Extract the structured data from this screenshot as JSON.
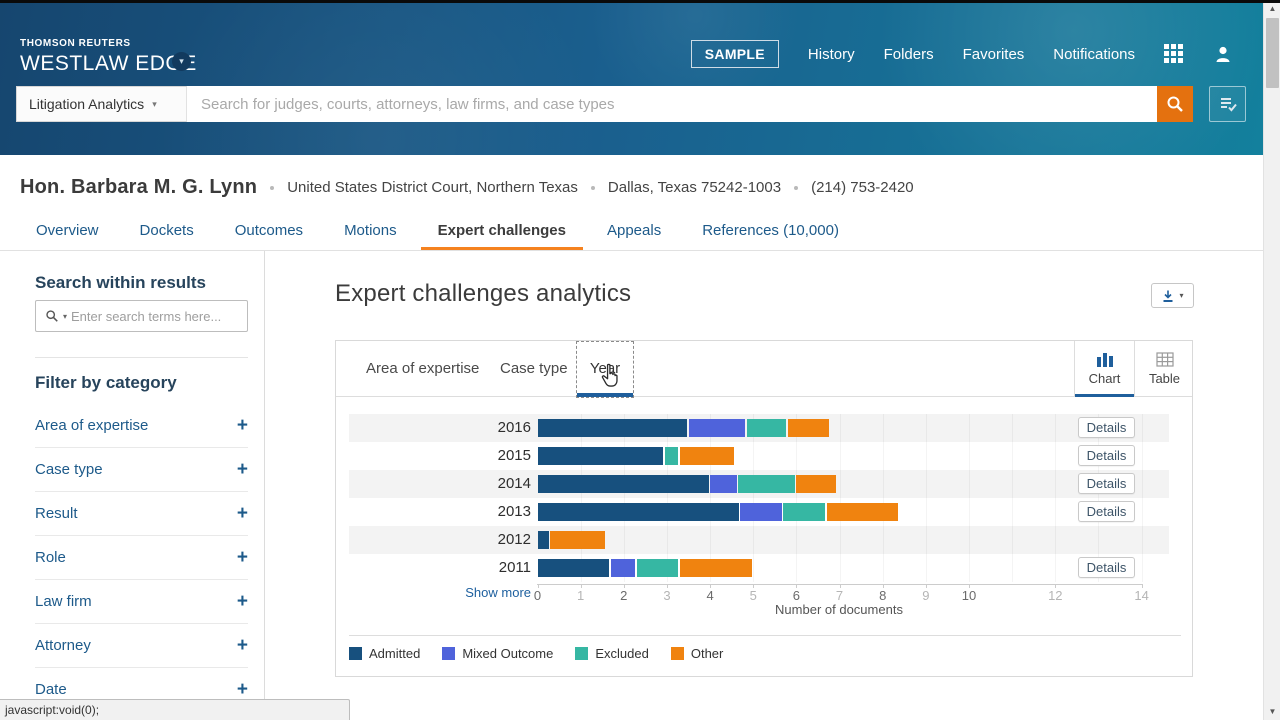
{
  "header": {
    "brand_small": "THOMSON REUTERS",
    "brand_large": "WESTLAW EDGE",
    "nav": [
      "SAMPLE",
      "History",
      "Folders",
      "Favorites",
      "Notifications"
    ],
    "search": {
      "scope_label": "Litigation Analytics",
      "placeholder": "Search for judges, courts, attorneys, law firms, and case types"
    }
  },
  "profile": {
    "name": "Hon. Barbara M. G. Lynn",
    "court": "United States District Court, Northern Texas",
    "location": "Dallas, Texas 75242-1003",
    "phone": "(214) 753-2420"
  },
  "profile_tabs": [
    {
      "label": "Overview",
      "active": false
    },
    {
      "label": "Dockets",
      "active": false
    },
    {
      "label": "Outcomes",
      "active": false
    },
    {
      "label": "Motions",
      "active": false
    },
    {
      "label": "Expert challenges",
      "active": true
    },
    {
      "label": "Appeals",
      "active": false
    },
    {
      "label": "References (10,000)",
      "active": false
    }
  ],
  "sidebar": {
    "search_title": "Search within results",
    "search_placeholder": "Enter search terms here...",
    "filter_title": "Filter by category",
    "filters": [
      "Area of expertise",
      "Case type",
      "Result",
      "Role",
      "Law firm",
      "Attorney",
      "Date"
    ]
  },
  "main": {
    "title": "Expert challenges analytics"
  },
  "panel": {
    "tabs": [
      {
        "label": "Area of expertise",
        "active": false
      },
      {
        "label": "Case type",
        "active": false
      },
      {
        "label": "Year",
        "active": true
      }
    ],
    "view_toggle": [
      {
        "label": "Chart",
        "active": true
      },
      {
        "label": "Table",
        "active": false
      }
    ],
    "show_more": "Show more",
    "details_label": "Details"
  },
  "chart_data": {
    "type": "bar",
    "orientation": "horizontal",
    "stacked": true,
    "categories": [
      "2016",
      "2015",
      "2014",
      "2013",
      "2012",
      "2011"
    ],
    "series": [
      {
        "name": "Admitted",
        "color": "#17507e",
        "values": [
          3.5,
          2.95,
          4.0,
          4.7,
          0.3,
          1.7
        ]
      },
      {
        "name": "Mixed Outcome",
        "color": "#4f63db",
        "values": [
          1.35,
          0,
          0.65,
          1.0,
          0,
          0.6
        ]
      },
      {
        "name": "Excluded",
        "color": "#36b7a3",
        "values": [
          0.95,
          0.35,
          1.35,
          1.0,
          0,
          1.0
        ]
      },
      {
        "name": "Other",
        "color": "#f0830f",
        "values": [
          1.0,
          1.3,
          0.95,
          1.7,
          1.3,
          1.7
        ]
      }
    ],
    "details_button_rows": [
      true,
      true,
      true,
      true,
      false,
      true
    ],
    "xlabel": "Number of documents",
    "xlim": [
      0,
      14
    ],
    "xticks": [
      0,
      1,
      2,
      3,
      4,
      5,
      6,
      7,
      8,
      9,
      10,
      12,
      14
    ],
    "legend_position": "bottom",
    "row_stripes": true
  },
  "icons": {
    "caret_down": "▾",
    "plus": "+",
    "arrow_up": "▲",
    "arrow_down": "▼",
    "separator_dot": "·"
  },
  "colors": {
    "header_blue": "#16466f",
    "header_teal": "#13809d",
    "link_blue": "#1d5a8a",
    "accent_blue": "#1f5f9c",
    "active_tab_orange": "#f5821f",
    "search_button_orange": "#e4710f",
    "stripe_gray": "#f3f3f3"
  },
  "status_bar": "javascript:void(0);"
}
